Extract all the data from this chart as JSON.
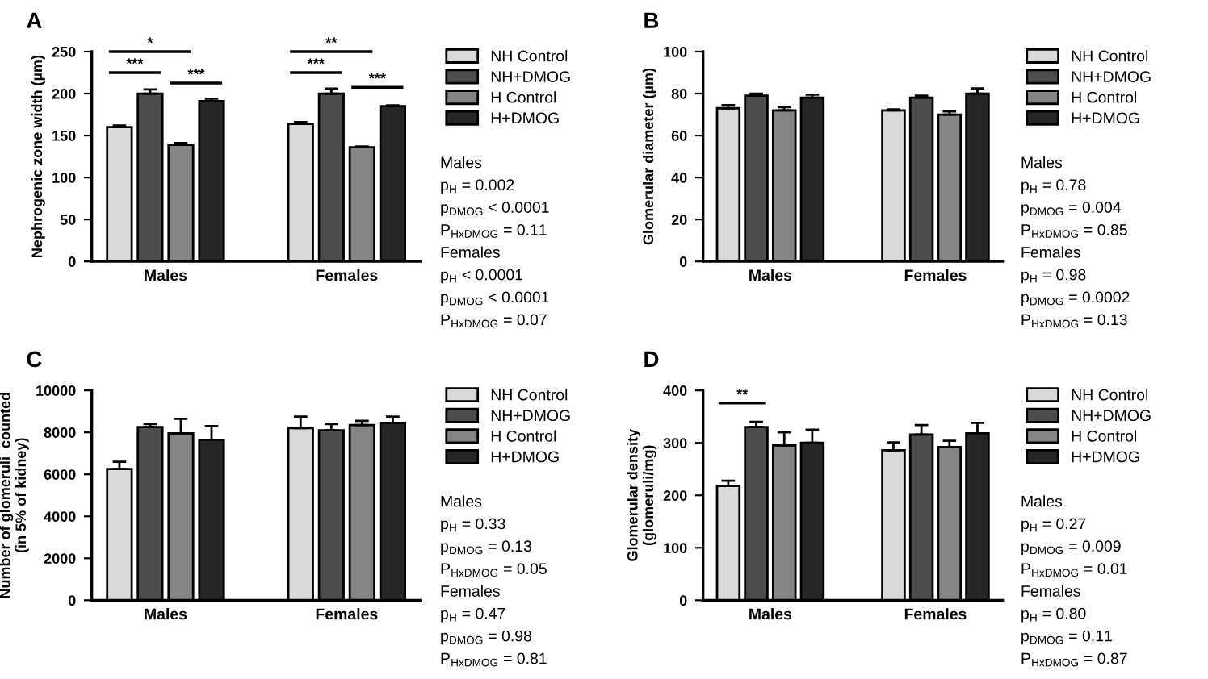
{
  "chart_data": [
    {
      "type": "bar",
      "title": "A",
      "ylabel": "Nephrogenic zone width (µm)",
      "categories": [
        "Males",
        "Females"
      ],
      "ylim": [
        0,
        250
      ],
      "yticks": [
        0,
        50,
        100,
        150,
        200,
        250
      ],
      "legend": "right",
      "grid": false,
      "series": [
        {
          "name": "NH Control",
          "color": "#d9d9d9",
          "values": [
            160,
            164
          ],
          "errors": [
            2,
            2
          ]
        },
        {
          "name": "NH+DMOG",
          "color": "#4d4d4d",
          "values": [
            200,
            200
          ],
          "errors": [
            5,
            6
          ]
        },
        {
          "name": "H Control",
          "color": "#858585",
          "values": [
            139,
            136
          ],
          "errors": [
            2,
            1
          ]
        },
        {
          "name": "H+DMOG",
          "color": "#262626",
          "values": [
            191,
            185
          ],
          "errors": [
            3,
            1
          ]
        }
      ],
      "annotations": [
        "*",
        "***",
        "***",
        "**",
        "***",
        "***",
        "Males",
        "p$_{H}$ = 0.002",
        "p$_{DMOG}$ < 0.0001",
        "P$_{HxDMOG}$ = 0.11",
        "Females",
        "p$_{H}$ < 0.0001",
        "p$_{DMOG}$ < 0.0001",
        "P$_{HxDMOG}$ = 0.07"
      ]
    },
    {
      "type": "bar",
      "title": "B",
      "ylabel": "Glomerular diameter (µm)",
      "categories": [
        "Males",
        "Females"
      ],
      "ylim": [
        0,
        100
      ],
      "yticks": [
        0,
        20,
        40,
        60,
        80,
        100
      ],
      "legend": "right",
      "grid": false,
      "series": [
        {
          "name": "NH Control",
          "color": "#d9d9d9",
          "values": [
            73,
            72
          ],
          "errors": [
            1.5,
            0.5
          ]
        },
        {
          "name": "NH+DMOG",
          "color": "#4d4d4d",
          "values": [
            79,
            78
          ],
          "errors": [
            1,
            1
          ]
        },
        {
          "name": "H Control",
          "color": "#858585",
          "values": [
            72,
            70
          ],
          "errors": [
            1.5,
            1.5
          ]
        },
        {
          "name": "H+DMOG",
          "color": "#262626",
          "values": [
            78,
            80
          ],
          "errors": [
            1.5,
            2.5
          ]
        }
      ],
      "annotations": [
        "Males",
        "p$_{H}$ = 0.78",
        "p$_{DMOG}$ = 0.004",
        "P$_{HxDMOG}$ = 0.85",
        "Females",
        "p$_{H}$ = 0.98",
        "p$_{DMOG}$ = 0.0002",
        "P$_{HxDMOG}$ = 0.13"
      ]
    },
    {
      "type": "bar",
      "title": "C",
      "ylabel": "Number of glomeruli  counted\n(in 5% of kidney)",
      "categories": [
        "Males",
        "Females"
      ],
      "ylim": [
        0,
        10000
      ],
      "yticks": [
        0,
        2000,
        4000,
        6000,
        8000,
        10000
      ],
      "legend": "right",
      "grid": false,
      "series": [
        {
          "name": "NH Control",
          "color": "#d9d9d9",
          "values": [
            6250,
            8200
          ],
          "errors": [
            350,
            550
          ]
        },
        {
          "name": "NH+DMOG",
          "color": "#4d4d4d",
          "values": [
            8250,
            8100
          ],
          "errors": [
            150,
            300
          ]
        },
        {
          "name": "H Control",
          "color": "#858585",
          "values": [
            7950,
            8350
          ],
          "errors": [
            700,
            200
          ]
        },
        {
          "name": "H+DMOG",
          "color": "#262626",
          "values": [
            7650,
            8450
          ],
          "errors": [
            650,
            300
          ]
        }
      ],
      "annotations": [
        "Males",
        "p$_{H}$ = 0.33",
        "p$_{DMOG}$ = 0.13",
        "P$_{HxDMOG}$ = 0.05",
        "Females",
        "p$_{H}$ = 0.47",
        "p$_{DMOG}$ = 0.98",
        "P$_{HxDMOG}$ = 0.81"
      ]
    },
    {
      "type": "bar",
      "title": "D",
      "ylabel": "Glomerular density\n(glomeruli/mg)",
      "categories": [
        "Males",
        "Females"
      ],
      "ylim": [
        0,
        400
      ],
      "yticks": [
        0,
        100,
        200,
        300,
        400
      ],
      "legend": "right",
      "grid": false,
      "series": [
        {
          "name": "NH Control",
          "color": "#d9d9d9",
          "values": [
            218,
            286
          ],
          "errors": [
            10,
            15
          ]
        },
        {
          "name": "NH+DMOG",
          "color": "#4d4d4d",
          "values": [
            330,
            316
          ],
          "errors": [
            10,
            18
          ]
        },
        {
          "name": "H Control",
          "color": "#858585",
          "values": [
            295,
            292
          ],
          "errors": [
            25,
            12
          ]
        },
        {
          "name": "H+DMOG",
          "color": "#262626",
          "values": [
            300,
            318
          ],
          "errors": [
            25,
            20
          ]
        }
      ],
      "annotations": [
        "**",
        "Males",
        "p$_{H}$ = 0.27",
        "p$_{DMOG}$ = 0.009",
        "P$_{HxDMOG}$ = 0.01",
        "Females",
        "p$_{H}$ = 0.80",
        "p$_{DMOG}$ = 0.11",
        "P$_{HxDMOG}$ = 0.87"
      ]
    }
  ]
}
